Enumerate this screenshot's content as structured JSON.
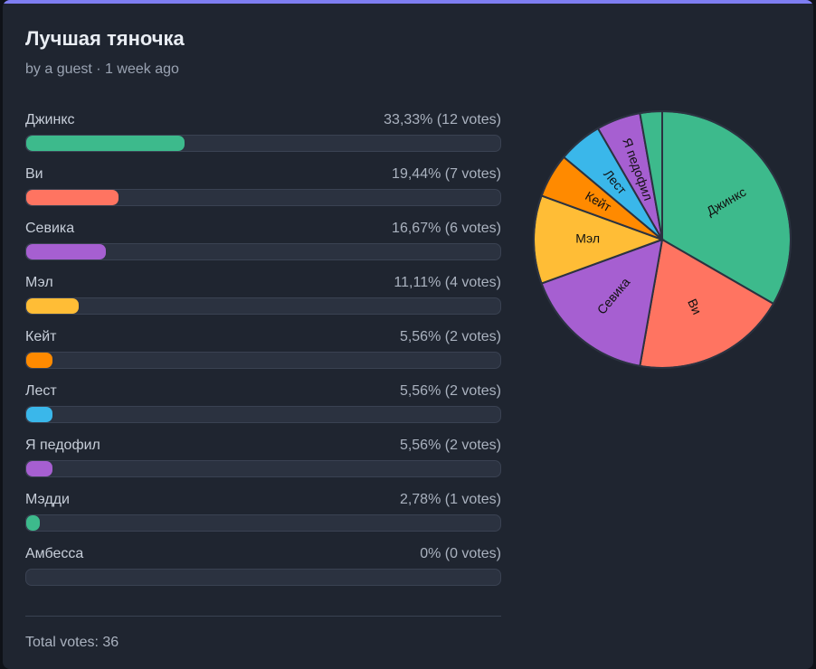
{
  "poll": {
    "title": "Лучшая тяночка",
    "meta": "by a guest · 1 week ago",
    "total_label": "Total votes: 36"
  },
  "chart_data": {
    "type": "pie",
    "categories": [
      "Джинкс",
      "Ви",
      "Севика",
      "Мэл",
      "Кейт",
      "Лест",
      "Я педофил",
      "Мэдди",
      "Амбесса"
    ],
    "values": [
      12,
      7,
      6,
      4,
      2,
      2,
      2,
      1,
      0
    ],
    "results": [
      "33,33% (12 votes)",
      "19,44% (7 votes)",
      "16,67% (6 votes)",
      "11,11% (4 votes)",
      "5,56% (2 votes)",
      "5,56% (2 votes)",
      "5,56% (2 votes)",
      "2,78% (1 votes)",
      "0% (0 votes)"
    ],
    "colors": [
      "#3dba8c",
      "#ff7461",
      "#a65fd1",
      "#ffbd36",
      "#ff8a00",
      "#3ab7ea",
      "#a65fd1",
      "#3dba8c",
      "#ff7461"
    ],
    "pie_labels": [
      "Джинкс",
      "Ви",
      "Севика",
      "Мэл",
      "Кейт",
      "Лест",
      "Я педофил",
      "",
      ""
    ],
    "total": 36
  },
  "theme": {
    "accent": "#7e7ef2",
    "background": "#1f2530",
    "track": "#2b3240"
  }
}
